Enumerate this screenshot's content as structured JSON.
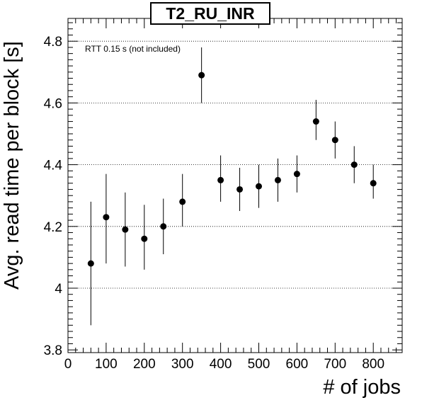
{
  "chart_data": {
    "type": "scatter",
    "title": "T2_RU_INR",
    "xlabel": "# of jobs",
    "ylabel": "Avg. read time per block [s]",
    "annotation": "RTT 0.15 s (not included)",
    "xlim": [
      0,
      875
    ],
    "ylim": [
      3.8,
      4.87
    ],
    "xticks": [
      0,
      100,
      200,
      300,
      400,
      500,
      600,
      700,
      800
    ],
    "yticks": [
      3.8,
      4,
      4.2,
      4.4,
      4.6,
      4.8
    ],
    "ytick_labels": [
      "3.8",
      "4",
      "4.2",
      "4.4",
      "4.6",
      "4.8"
    ],
    "grid": {
      "x": false,
      "y": true,
      "style": "dotted"
    },
    "marker_color": "#000000",
    "points": [
      {
        "x": 60,
        "y": 4.08,
        "ylo": 3.88,
        "yhi": 4.28
      },
      {
        "x": 100,
        "y": 4.23,
        "ylo": 4.08,
        "yhi": 4.37
      },
      {
        "x": 150,
        "y": 4.19,
        "ylo": 4.07,
        "yhi": 4.31
      },
      {
        "x": 200,
        "y": 4.16,
        "ylo": 4.06,
        "yhi": 4.27
      },
      {
        "x": 250,
        "y": 4.2,
        "ylo": 4.11,
        "yhi": 4.29
      },
      {
        "x": 300,
        "y": 4.28,
        "ylo": 4.2,
        "yhi": 4.37
      },
      {
        "x": 350,
        "y": 4.69,
        "ylo": 4.6,
        "yhi": 4.78
      },
      {
        "x": 400,
        "y": 4.35,
        "ylo": 4.28,
        "yhi": 4.43
      },
      {
        "x": 450,
        "y": 4.32,
        "ylo": 4.25,
        "yhi": 4.39
      },
      {
        "x": 500,
        "y": 4.33,
        "ylo": 4.26,
        "yhi": 4.4
      },
      {
        "x": 550,
        "y": 4.35,
        "ylo": 4.28,
        "yhi": 4.42
      },
      {
        "x": 600,
        "y": 4.37,
        "ylo": 4.31,
        "yhi": 4.43
      },
      {
        "x": 650,
        "y": 4.54,
        "ylo": 4.48,
        "yhi": 4.61
      },
      {
        "x": 700,
        "y": 4.48,
        "ylo": 4.42,
        "yhi": 4.54
      },
      {
        "x": 750,
        "y": 4.4,
        "ylo": 4.34,
        "yhi": 4.46
      },
      {
        "x": 800,
        "y": 4.34,
        "ylo": 4.29,
        "yhi": 4.4
      }
    ]
  }
}
